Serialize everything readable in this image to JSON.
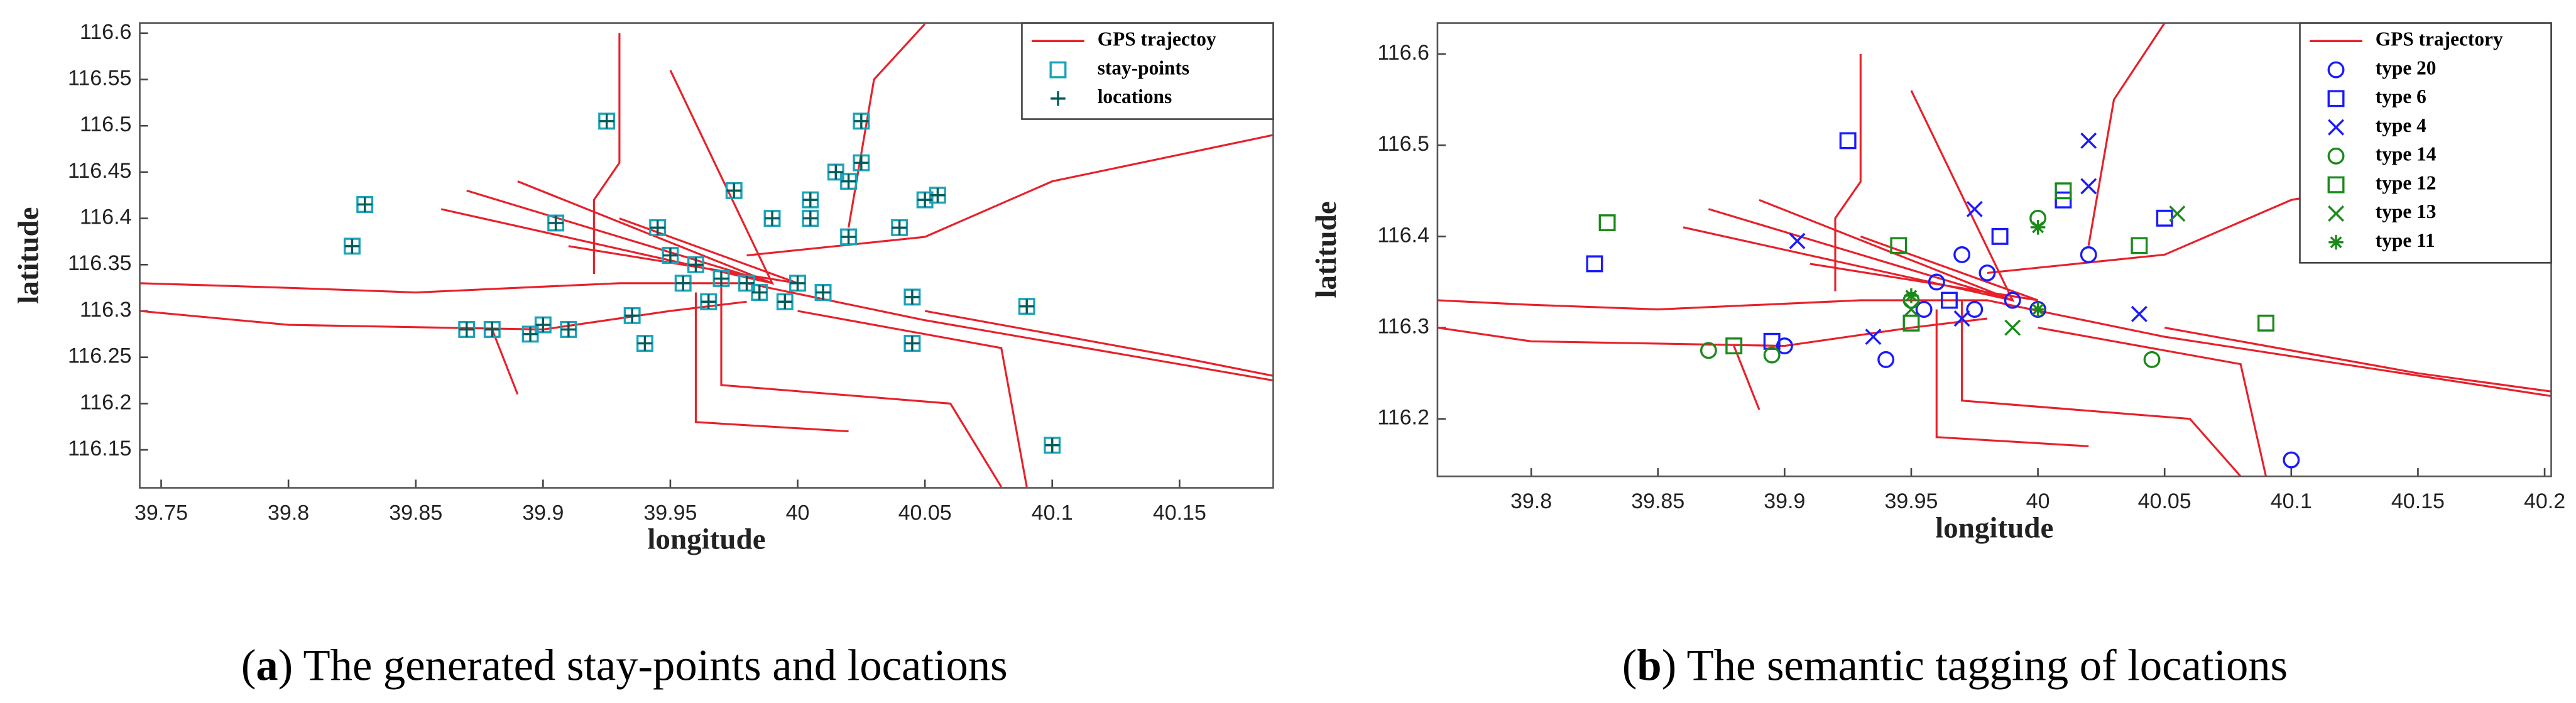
{
  "chart_data": [
    {
      "type": "scatter",
      "xlabel": "longitude",
      "ylabel": "latitude",
      "caption": [
        "(",
        "a",
        ") The generated stay-points and locations"
      ],
      "xlim": [
        39.7416,
        40.1868
      ],
      "ylim": [
        116.109,
        116.611
      ],
      "xticks": [
        39.75,
        39.8,
        39.85,
        39.9,
        39.95,
        40,
        40.05,
        40.1,
        40.15
      ],
      "yticks": [
        116.15,
        116.2,
        116.25,
        116.3,
        116.35,
        116.4,
        116.45,
        116.5,
        116.55,
        116.6
      ],
      "legend": "upper right",
      "series": [
        {
          "name": "GPS trajectoy",
          "color": "#e8202a",
          "kind": "line",
          "x": [
            39.7416,
            39.8,
            39.85,
            39.93,
            39.98,
            40.05,
            40.1868,
            null,
            39.7416,
            39.8,
            39.9,
            39.95,
            39.98,
            null,
            39.98,
            40.05,
            40.1,
            40.1868,
            null,
            40.02,
            40.03,
            40.05,
            null,
            39.92,
            39.92,
            39.93,
            39.93,
            null,
            39.97,
            39.97,
            40.06,
            40.08,
            null,
            39.87,
            39.99,
            39.86,
            null,
            39.89,
            39.99,
            39.95,
            null,
            39.88,
            39.89,
            null,
            40.0,
            40.08,
            40.09,
            null,
            40.05,
            40.15,
            40.1868,
            null,
            39.93,
            40.0,
            39.91,
            null,
            39.96,
            39.96,
            40.02
          ],
          "y": [
            116.33,
            116.325,
            116.32,
            116.33,
            116.33,
            116.29,
            116.225,
            null,
            116.3,
            116.285,
            116.28,
            116.3,
            116.31,
            null,
            116.36,
            116.38,
            116.44,
            116.49,
            null,
            116.39,
            116.55,
            116.61,
            null,
            116.34,
            116.42,
            116.46,
            116.6,
            null,
            116.33,
            116.22,
            116.2,
            116.11,
            null,
            116.43,
            116.33,
            116.41,
            null,
            116.44,
            116.33,
            116.56,
            null,
            116.28,
            116.21,
            null,
            116.3,
            116.26,
            116.11,
            null,
            116.3,
            116.25,
            116.23,
            null,
            116.4,
            116.33,
            116.37,
            null,
            116.32,
            116.18,
            116.17
          ]
        },
        {
          "name": "stay-points",
          "color": "#1aa3b8",
          "kind": "square",
          "x": [
            39.825,
            39.83,
            39.87,
            39.88,
            39.895,
            39.9,
            39.91,
            39.905,
            39.925,
            39.935,
            39.94,
            39.945,
            39.95,
            39.955,
            39.96,
            39.965,
            39.97,
            39.975,
            39.98,
            39.985,
            39.99,
            39.995,
            40.0,
            40.005,
            40.005,
            40.01,
            40.015,
            40.02,
            40.02,
            40.025,
            40.025,
            40.04,
            40.045,
            40.045,
            40.05,
            40.055,
            40.09,
            40.1
          ],
          "y": [
            116.37,
            116.415,
            116.28,
            116.28,
            116.275,
            116.285,
            116.28,
            116.395,
            116.505,
            116.295,
            116.265,
            116.39,
            116.36,
            116.33,
            116.35,
            116.31,
            116.335,
            116.43,
            116.33,
            116.32,
            116.4,
            116.31,
            116.33,
            116.42,
            116.4,
            116.32,
            116.45,
            116.44,
            116.38,
            116.505,
            116.46,
            116.39,
            116.315,
            116.265,
            116.42,
            116.425,
            116.305,
            116.155
          ]
        },
        {
          "name": "locations",
          "color": "#005a5a",
          "kind": "plus",
          "x": [
            39.825,
            39.83,
            39.87,
            39.88,
            39.895,
            39.9,
            39.91,
            39.905,
            39.925,
            39.935,
            39.94,
            39.945,
            39.95,
            39.955,
            39.96,
            39.965,
            39.97,
            39.975,
            39.98,
            39.985,
            39.99,
            39.995,
            40.0,
            40.005,
            40.005,
            40.01,
            40.015,
            40.02,
            40.02,
            40.025,
            40.025,
            40.04,
            40.045,
            40.045,
            40.05,
            40.055,
            40.09,
            40.1
          ],
          "y": [
            116.37,
            116.415,
            116.28,
            116.28,
            116.275,
            116.285,
            116.28,
            116.395,
            116.505,
            116.295,
            116.265,
            116.39,
            116.36,
            116.33,
            116.35,
            116.31,
            116.335,
            116.43,
            116.33,
            116.32,
            116.4,
            116.31,
            116.33,
            116.42,
            116.4,
            116.32,
            116.45,
            116.44,
            116.38,
            116.505,
            116.46,
            116.39,
            116.315,
            116.265,
            116.42,
            116.425,
            116.305,
            116.155
          ]
        }
      ]
    },
    {
      "type": "scatter",
      "xlabel": "longitude",
      "ylabel": "latitude",
      "caption": [
        "(",
        "b",
        ") The semantic tagging of locations"
      ],
      "xlim": [
        39.763,
        40.2026
      ],
      "ylim": [
        116.137,
        116.634
      ],
      "xticks": [
        39.8,
        39.85,
        39.9,
        39.95,
        40,
        40.05,
        40.1,
        40.15,
        40.2
      ],
      "yticks": [
        116.2,
        116.3,
        116.4,
        116.5,
        116.6
      ],
      "legend": "upper right",
      "series": [
        {
          "name": "GPS trajectory",
          "color": "#e8202a",
          "kind": "line",
          "x": [
            39.763,
            39.8,
            39.85,
            39.93,
            39.98,
            40.05,
            40.2026,
            null,
            39.763,
            39.8,
            39.9,
            39.95,
            39.98,
            null,
            39.98,
            40.05,
            40.1,
            40.2026,
            null,
            40.02,
            40.03,
            40.05,
            null,
            39.92,
            39.92,
            39.93,
            39.93,
            null,
            39.97,
            39.97,
            40.06,
            40.08,
            null,
            39.87,
            39.99,
            39.86,
            null,
            39.89,
            39.99,
            39.95,
            null,
            39.88,
            39.89,
            null,
            40.0,
            40.08,
            40.09,
            null,
            40.05,
            40.15,
            40.2026,
            null,
            39.93,
            40.0,
            39.91,
            null,
            39.96,
            39.96,
            40.02
          ],
          "y": [
            116.33,
            116.325,
            116.32,
            116.33,
            116.33,
            116.29,
            116.225,
            null,
            116.3,
            116.285,
            116.28,
            116.3,
            116.31,
            null,
            116.36,
            116.38,
            116.44,
            116.49,
            null,
            116.39,
            116.55,
            116.634,
            null,
            116.34,
            116.42,
            116.46,
            116.6,
            null,
            116.33,
            116.22,
            116.2,
            116.137,
            null,
            116.43,
            116.33,
            116.41,
            null,
            116.44,
            116.33,
            116.56,
            null,
            116.28,
            116.21,
            null,
            116.3,
            116.26,
            116.137,
            null,
            116.3,
            116.25,
            116.23,
            null,
            116.4,
            116.33,
            116.37,
            null,
            116.32,
            116.18,
            116.17
          ]
        },
        {
          "name": "type 20",
          "color": "#1a1aff",
          "kind": "circle",
          "x": [
            39.9,
            39.94,
            39.96,
            39.97,
            39.98,
            39.99,
            40.0,
            40.02,
            39.955,
            39.975,
            40.1
          ],
          "y": [
            116.28,
            116.265,
            116.35,
            116.38,
            116.36,
            116.33,
            116.32,
            116.38,
            116.32,
            116.32,
            116.155
          ]
        },
        {
          "name": "type 6",
          "color": "#1a1aff",
          "kind": "square",
          "x": [
            39.825,
            39.895,
            39.925,
            39.985,
            40.01,
            40.05,
            39.965
          ],
          "y": [
            116.37,
            116.285,
            116.505,
            116.4,
            116.44,
            116.42,
            116.33
          ]
        },
        {
          "name": "type 4",
          "color": "#1a1aff",
          "kind": "cross",
          "x": [
            39.905,
            39.935,
            39.975,
            40.02,
            40.02,
            40.04,
            39.97
          ],
          "y": [
            116.395,
            116.29,
            116.43,
            116.505,
            116.455,
            116.315,
            116.31
          ]
        },
        {
          "name": "type 14",
          "color": "#1a8a1a",
          "kind": "circle",
          "x": [
            39.87,
            39.895,
            40.0,
            40.045,
            39.95
          ],
          "y": [
            116.275,
            116.27,
            116.42,
            116.265,
            116.33
          ]
        },
        {
          "name": "type 12",
          "color": "#1a8a1a",
          "kind": "square",
          "x": [
            39.83,
            39.88,
            39.945,
            39.95,
            40.01,
            40.04,
            40.09
          ],
          "y": [
            116.415,
            116.28,
            116.39,
            116.305,
            116.45,
            116.39,
            116.305
          ]
        },
        {
          "name": "type 13",
          "color": "#1a8a1a",
          "kind": "cross",
          "x": [
            40.055,
            39.95,
            39.99
          ],
          "y": [
            116.425,
            116.32,
            116.3
          ]
        },
        {
          "name": "type 11",
          "color": "#1a8a1a",
          "kind": "asterisk",
          "x": [
            40.0,
            40.0,
            39.95
          ],
          "y": [
            116.41,
            116.32,
            116.335
          ]
        }
      ]
    }
  ]
}
